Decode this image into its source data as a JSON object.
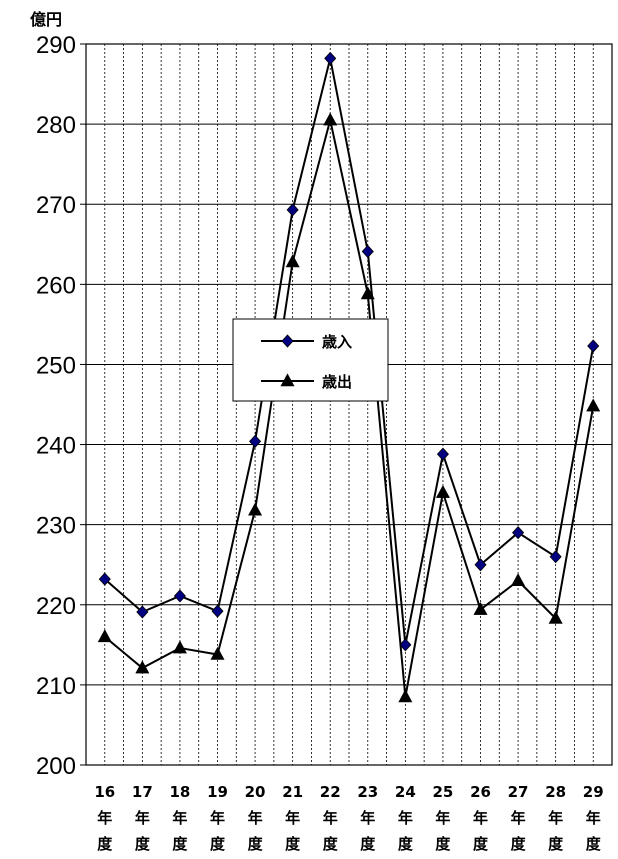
{
  "chart_data": {
    "type": "line",
    "unit_label": "億円",
    "categories": [
      "16",
      "17",
      "18",
      "19",
      "20",
      "21",
      "22",
      "23",
      "24",
      "25",
      "26",
      "27",
      "28",
      "29"
    ],
    "category_suffix": [
      "年",
      "度"
    ],
    "ylim": [
      200,
      290
    ],
    "yticks": [
      200,
      210,
      220,
      230,
      240,
      250,
      260,
      270,
      280,
      290
    ],
    "grid": {
      "horizontal": true,
      "vertical": true
    },
    "legend_position": "center",
    "series": [
      {
        "name": "歳入",
        "marker": "diamond",
        "color": "#000080",
        "values": [
          223.2,
          219.1,
          221.1,
          219.2,
          240.4,
          269.3,
          288.2,
          264.1,
          215.0,
          238.8,
          225.0,
          229.0,
          226.0,
          252.3
        ]
      },
      {
        "name": "歳出",
        "marker": "triangle",
        "color": "#000000",
        "values": [
          216.0,
          212.1,
          214.6,
          213.8,
          231.8,
          262.8,
          280.5,
          258.8,
          208.5,
          234.0,
          219.4,
          223.0,
          218.3,
          244.8
        ]
      }
    ]
  }
}
